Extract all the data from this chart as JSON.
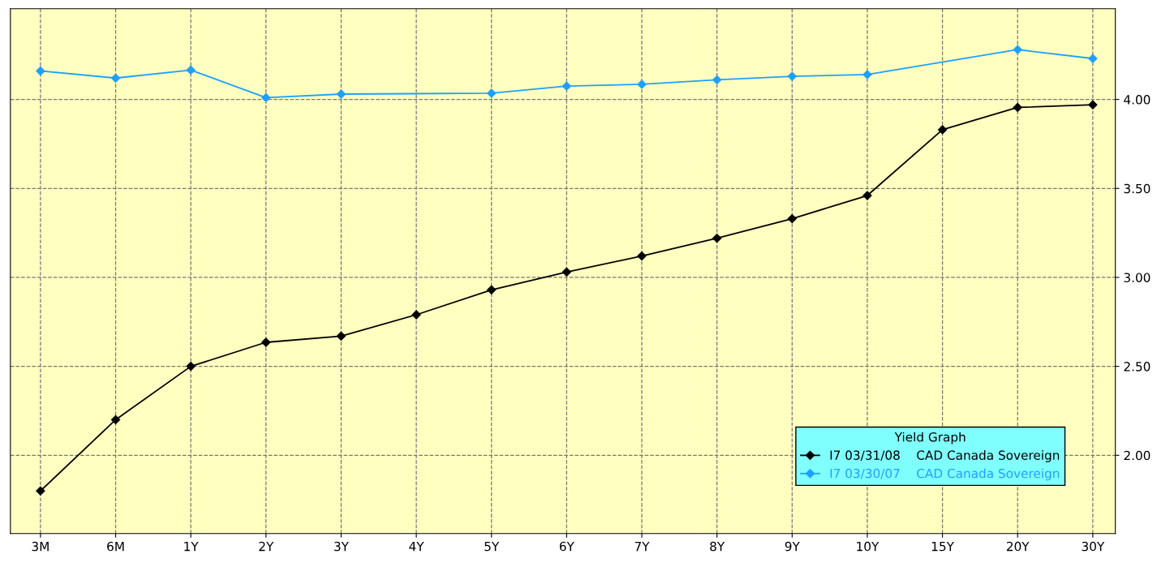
{
  "chart_data": {
    "type": "line",
    "categories": [
      "3M",
      "6M",
      "1Y",
      "2Y",
      "3Y",
      "4Y",
      "5Y",
      "6Y",
      "7Y",
      "8Y",
      "9Y",
      "10Y",
      "15Y",
      "20Y",
      "30Y"
    ],
    "series": [
      {
        "name": "I7 03/31/08    CAD Canada Sovereign",
        "color": "#000000",
        "values": [
          1.8,
          2.2,
          2.5,
          2.635,
          2.67,
          2.79,
          2.93,
          3.03,
          3.12,
          3.22,
          3.33,
          3.46,
          3.83,
          3.955,
          3.97
        ]
      },
      {
        "name": "I7 03/30/07    CAD Canada Sovereign",
        "color": "#1ea0ff",
        "values": [
          4.16,
          4.12,
          4.165,
          4.01,
          4.03,
          null,
          4.035,
          4.075,
          4.085,
          4.11,
          4.13,
          4.14,
          null,
          4.28,
          4.23
        ]
      }
    ],
    "legend_title": "Yield Graph",
    "legend": "bottom right",
    "ylim": [
      1.56,
      4.51
    ],
    "yticks": [
      {
        "value": 2,
        "label": "2.00"
      },
      {
        "value": 2.5,
        "label": "2.50"
      },
      {
        "value": 3,
        "label": "3.00"
      },
      {
        "value": 3.5,
        "label": "3.50"
      },
      {
        "value": 4,
        "label": "4.00"
      }
    ],
    "grid": true,
    "marker": "diamond",
    "line_style": "solid"
  }
}
